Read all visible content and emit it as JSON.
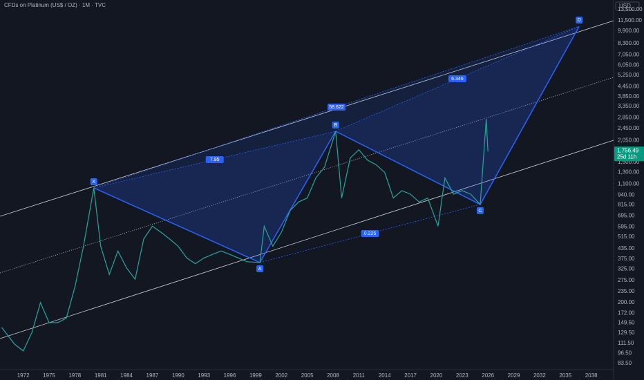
{
  "chart_data": {
    "type": "line",
    "title": "CFDs on Platinum (US$ / OZ) · 1M · TVC",
    "currency": "USD",
    "yscale": "log",
    "grid": false,
    "x": [
      1969.5,
      1971,
      1972,
      1973,
      1974,
      1975,
      1976,
      1977,
      1978,
      1979,
      1980.2,
      1981,
      1982,
      1983,
      1984,
      1985,
      1986,
      1987,
      1988,
      1989,
      1990,
      1991,
      1992,
      1993,
      1994,
      1995,
      1996,
      1997,
      1998,
      1999.5,
      2000,
      2001,
      2002,
      2003,
      2004,
      2005,
      2006,
      2007,
      2008.3,
      2009,
      2010,
      2011,
      2012,
      2013,
      2014,
      2015,
      2016,
      2017,
      2018,
      2019,
      2020.2,
      2021,
      2022,
      2023,
      2024,
      2025.1,
      2025.8,
      2026
    ],
    "series": [
      {
        "name": "Platinum",
        "color": "#26a69a",
        "values": [
          140,
          110,
          100,
          130,
          200,
          150,
          150,
          160,
          250,
          450,
          1040,
          450,
          300,
          420,
          330,
          280,
          500,
          600,
          550,
          500,
          450,
          380,
          350,
          380,
          400,
          420,
          400,
          380,
          360,
          356,
          600,
          450,
          550,
          750,
          850,
          900,
          1200,
          1400,
          2346,
          900,
          1600,
          1800,
          1550,
          1450,
          1300,
          900,
          1000,
          950,
          850,
          900,
          600,
          1200,
          950,
          1000,
          950,
          820,
          2800,
          1756.49
        ]
      }
    ],
    "last_price": {
      "value": 1756.49,
      "label": "1,756.49"
    },
    "countdown": "25d 11h",
    "pattern": {
      "labels": [
        "X",
        "A",
        "B",
        "C",
        "D"
      ],
      "x": [
        1980.2,
        1999.5,
        2008.3,
        2025.1,
        2036.6
      ],
      "y": [
        1040,
        356,
        2346,
        820,
        10600
      ],
      "ratios": [
        "7.95",
        "58.622",
        "0.225",
        "6.346"
      ]
    },
    "xlim": [
      1969.3,
      2040.6
    ],
    "xticks": [
      1972,
      1975,
      1978,
      1981,
      1984,
      1987,
      1990,
      1993,
      1996,
      1999,
      2002,
      2005,
      2008,
      2011,
      2014,
      2017,
      2020,
      2023,
      2026,
      2029,
      2032,
      2035,
      2038
    ],
    "ylim": [
      76.4,
      15470
    ],
    "yticks": [
      {
        "value": 13500,
        "label": "13,500.00"
      },
      {
        "value": 11500,
        "label": "11,500.00"
      },
      {
        "value": 9900,
        "label": "9,900.00"
      },
      {
        "value": 8300,
        "label": "8,300.00"
      },
      {
        "value": 7050,
        "label": "7,050.00"
      },
      {
        "value": 6050,
        "label": "6,050.00"
      },
      {
        "value": 5250,
        "label": "5,250.00"
      },
      {
        "value": 4450,
        "label": "4,450.00"
      },
      {
        "value": 3850,
        "label": "3,850.00"
      },
      {
        "value": 3350,
        "label": "3,350.00"
      },
      {
        "value": 2850,
        "label": "2,850.00"
      },
      {
        "value": 2450,
        "label": "2,450.00"
      },
      {
        "value": 2050,
        "label": "2,050.00"
      },
      {
        "value": 1500,
        "label": "1,500.00"
      },
      {
        "value": 1300,
        "label": "1,300.00"
      },
      {
        "value": 1100,
        "label": "1,100.00"
      },
      {
        "value": 940,
        "label": "940.00"
      },
      {
        "value": 815,
        "label": "815.00"
      },
      {
        "value": 695,
        "label": "695.00"
      },
      {
        "value": 595,
        "label": "595.00"
      },
      {
        "value": 515,
        "label": "515.00"
      },
      {
        "value": 435,
        "label": "435.00"
      },
      {
        "value": 375,
        "label": "375.00"
      },
      {
        "value": 325,
        "label": "325.00"
      },
      {
        "value": 275,
        "label": "275.00"
      },
      {
        "value": 235,
        "label": "235.00"
      },
      {
        "value": 200,
        "label": "200.00"
      },
      {
        "value": 172,
        "label": "172.00"
      },
      {
        "value": 149.5,
        "label": "149.50"
      },
      {
        "value": 129.5,
        "label": "129.50"
      },
      {
        "value": 111.5,
        "label": "111.50"
      },
      {
        "value": 96.5,
        "label": "96.50"
      },
      {
        "value": 83.5,
        "label": "83.50"
      }
    ]
  }
}
